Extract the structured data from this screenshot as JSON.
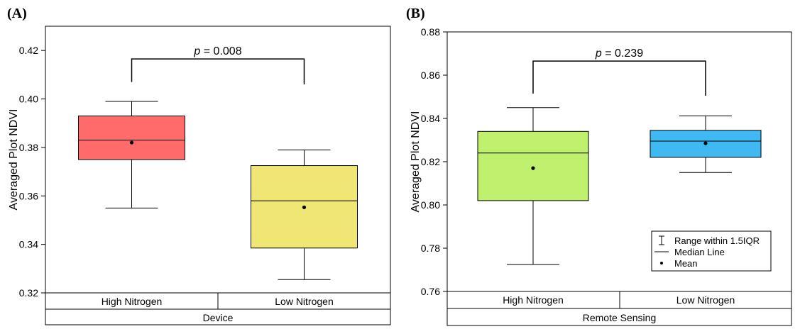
{
  "chart_data": [
    {
      "panel_label": "(A)",
      "type": "box",
      "ylabel": "Averaged Plot NDVI",
      "ylim": [
        0.32,
        0.43
      ],
      "yticks": [
        0.32,
        0.34,
        0.36,
        0.38,
        0.4,
        0.42
      ],
      "ytick_labels": [
        "0.32",
        "0.34",
        "0.36",
        "0.38",
        "0.40",
        "0.42"
      ],
      "categories": [
        "High Nitrogen",
        "Low Nitrogen"
      ],
      "group_label": "Device",
      "boxes": [
        {
          "category": "High Nitrogen",
          "whisker_low": 0.355,
          "q1": 0.375,
          "median": 0.383,
          "q3": 0.393,
          "whisker_high": 0.399,
          "mean": 0.382,
          "color": "#ff6b6b"
        },
        {
          "category": "Low Nitrogen",
          "whisker_low": 0.3255,
          "q1": 0.3385,
          "median": 0.358,
          "q3": 0.3725,
          "whisker_high": 0.379,
          "mean": 0.3553,
          "color": "#efe673"
        }
      ],
      "bracket": {
        "p_symbol": "p",
        "p_text": " = 0.008",
        "top": 0.4165,
        "left_end": 0.407,
        "right_end": 0.406
      }
    },
    {
      "panel_label": "(B)",
      "type": "box",
      "ylabel": "Averaged Plot NDVI",
      "ylim": [
        0.76,
        0.88
      ],
      "yticks": [
        0.76,
        0.78,
        0.8,
        0.82,
        0.84,
        0.86,
        0.88
      ],
      "ytick_labels": [
        "0.76",
        "0.78",
        "0.80",
        "0.82",
        "0.84",
        "0.86",
        "0.88"
      ],
      "categories": [
        "High Nitrogen",
        "Low Nitrogen"
      ],
      "group_label": "Remote Sensing",
      "boxes": [
        {
          "category": "High Nitrogen",
          "whisker_low": 0.7725,
          "q1": 0.802,
          "median": 0.824,
          "q3": 0.834,
          "whisker_high": 0.845,
          "mean": 0.817,
          "color": "#bff06e"
        },
        {
          "category": "Low Nitrogen",
          "whisker_low": 0.815,
          "q1": 0.822,
          "median": 0.8295,
          "q3": 0.8345,
          "whisker_high": 0.8412,
          "mean": 0.8285,
          "color": "#40b8f2"
        }
      ],
      "bracket": {
        "p_symbol": "p",
        "p_text": " = 0.239",
        "top": 0.8665,
        "left_end": 0.8515,
        "right_end": 0.8505
      },
      "legend": {
        "position": "bottom-right",
        "entries": [
          {
            "symbol": "whisker",
            "label": "Range within 1.5IQR"
          },
          {
            "symbol": "line",
            "label": "Median Line"
          },
          {
            "symbol": "dot",
            "label": "Mean"
          }
        ]
      }
    }
  ]
}
